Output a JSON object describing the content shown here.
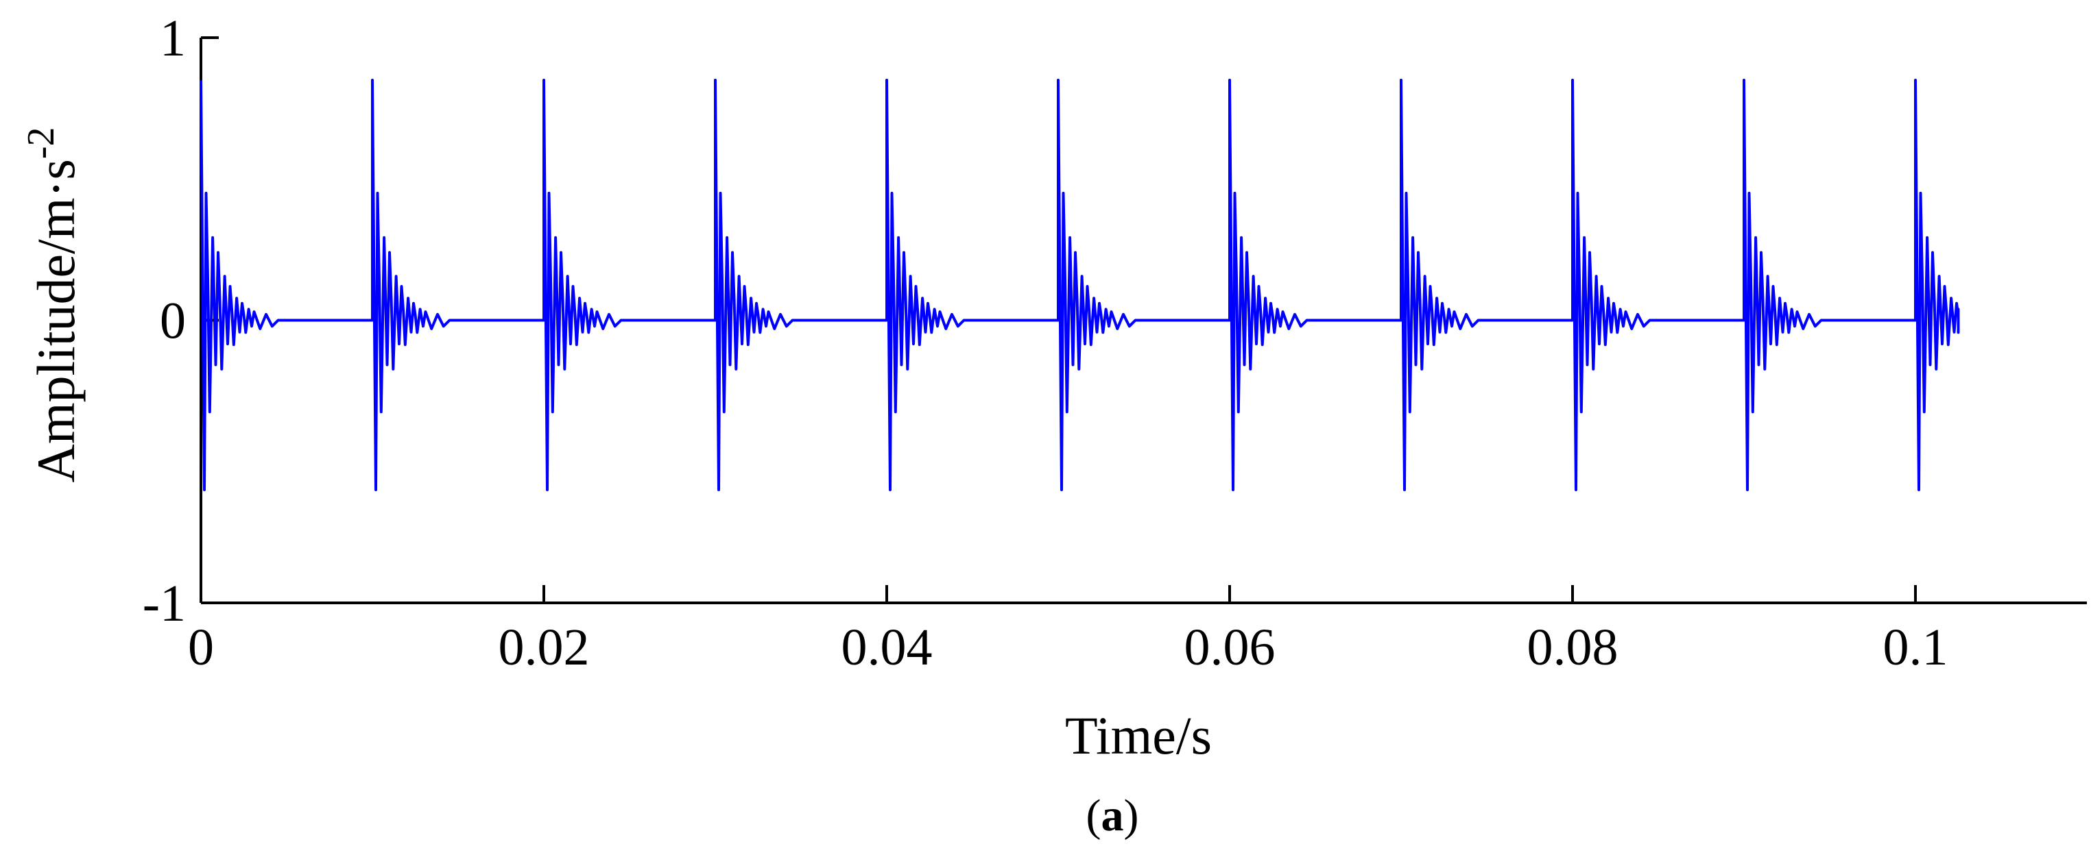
{
  "chart_data": {
    "type": "line",
    "title": "",
    "xlabel": "Time/s",
    "ylabel": "Amplitude/m·s",
    "ylabel_superscript": "-2",
    "caption_open": "(",
    "caption_letter": "a",
    "caption_close": ")",
    "xlim": [
      0,
      0.11
    ],
    "ylim": [
      -1,
      1
    ],
    "x_ticks": [
      {
        "value": 0,
        "label": "0"
      },
      {
        "value": 0.02,
        "label": "0.02"
      },
      {
        "value": 0.04,
        "label": "0.04"
      },
      {
        "value": 0.06,
        "label": "0.06"
      },
      {
        "value": 0.08,
        "label": "0.08"
      },
      {
        "value": 0.1,
        "label": "0.1"
      }
    ],
    "y_ticks": [
      {
        "value": -1,
        "label": "-1"
      },
      {
        "value": 0,
        "label": "0"
      },
      {
        "value": 1,
        "label": "1"
      }
    ],
    "grid": false,
    "series": [
      {
        "color": "#0000ff",
        "impulse_times": [
          0,
          0.01,
          0.02,
          0.03,
          0.04,
          0.05,
          0.06,
          0.07,
          0.08,
          0.09,
          0.1
        ],
        "impulse_peak": 0.85,
        "impulse_trough": -0.6,
        "decay_envelope": [
          0.45,
          0.24,
          0.12,
          0.06
        ],
        "oscillation_period": 0.0007,
        "decay_duration": 0.004,
        "x_end": 0.1025
      }
    ]
  }
}
